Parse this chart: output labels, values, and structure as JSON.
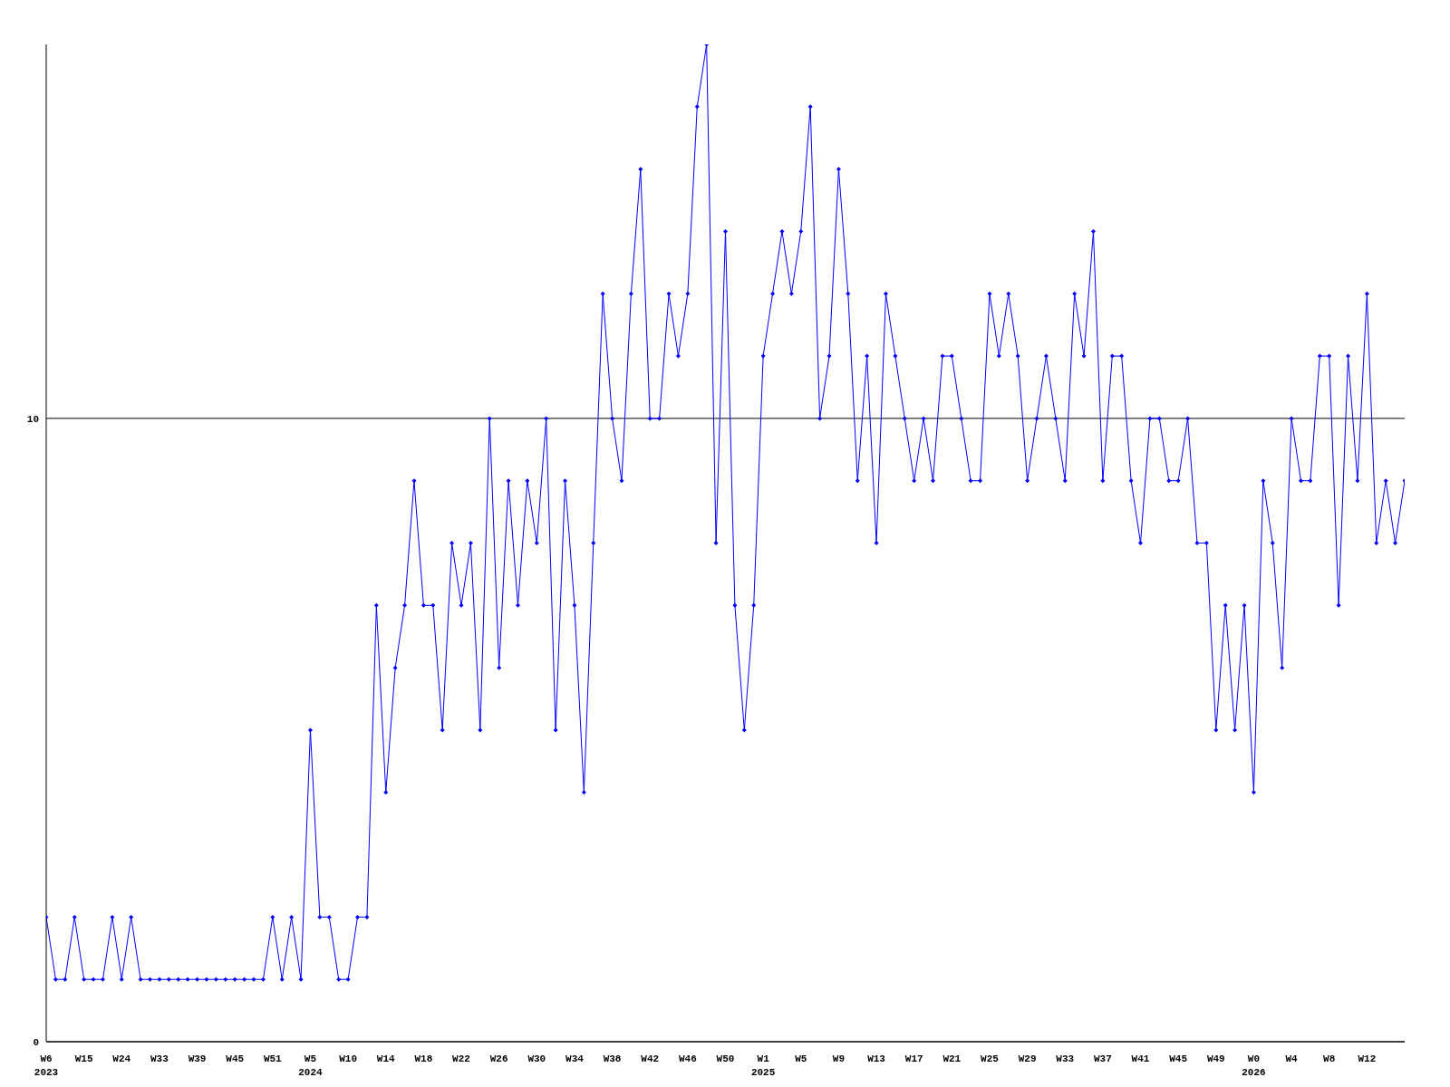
{
  "chart_data": {
    "type": "line",
    "categories": [
      "W6\n2023",
      null,
      null,
      null,
      "W15",
      null,
      null,
      null,
      "W24",
      null,
      null,
      null,
      "W33",
      null,
      null,
      null,
      "W39",
      null,
      null,
      null,
      "W45",
      null,
      null,
      null,
      "W51",
      null,
      null,
      null,
      "W5\n2024",
      null,
      null,
      null,
      "W10",
      null,
      null,
      null,
      "W14",
      null,
      null,
      null,
      "W18",
      null,
      null,
      null,
      "W22",
      null,
      null,
      null,
      "W26",
      null,
      null,
      null,
      "W30",
      null,
      null,
      null,
      "W34",
      null,
      null,
      null,
      "W38",
      null,
      null,
      null,
      "W42",
      null,
      null,
      null,
      "W46",
      null,
      null,
      null,
      "W50",
      null,
      null,
      null,
      "W1\n2025",
      null,
      null,
      null,
      "W5",
      null,
      null,
      null,
      "W9",
      null,
      null,
      null,
      "W13",
      null,
      null,
      null,
      "W17",
      null,
      null,
      null,
      "W21",
      null,
      null,
      null,
      "W25",
      null,
      null,
      null,
      "W29",
      null,
      null,
      null,
      "W33",
      null,
      null,
      null,
      "W37",
      null,
      null,
      null,
      "W41",
      null,
      null,
      null,
      "W45",
      null,
      null,
      null,
      "W49",
      null,
      null,
      null,
      "W0\n2026",
      null,
      null,
      null,
      "W4",
      null,
      null,
      null,
      "W8",
      null,
      null,
      null,
      "W12",
      null,
      null,
      null,
      null
    ],
    "series": [
      {
        "color": "#0000ff",
        "values": [
          2,
          1,
          1,
          2,
          1,
          1,
          1,
          2,
          1,
          2,
          1,
          1,
          1,
          1,
          1,
          1,
          1,
          1,
          1,
          1,
          1,
          1,
          1,
          1,
          2,
          1,
          2,
          1,
          5,
          2,
          2,
          1,
          1,
          2,
          2,
          7,
          4,
          6,
          7,
          9,
          7,
          7,
          5,
          8,
          7,
          8,
          5,
          10,
          6,
          9,
          7,
          9,
          8,
          10,
          5,
          9,
          7,
          4,
          8,
          12,
          10,
          9,
          12,
          14,
          10,
          10,
          12,
          11,
          12,
          15,
          16,
          8,
          13,
          7,
          5,
          7,
          11,
          12,
          13,
          12,
          13,
          15,
          10,
          11,
          14,
          12,
          9,
          11,
          8,
          12,
          11,
          10,
          9,
          10,
          9,
          11,
          11,
          10,
          9,
          9,
          12,
          11,
          12,
          11,
          9,
          10,
          11,
          10,
          9,
          12,
          11,
          13,
          9,
          11,
          11,
          9,
          8,
          10,
          10,
          9,
          9,
          10,
          8,
          8,
          5,
          7,
          5,
          7,
          4,
          9,
          8,
          6,
          10,
          9,
          9,
          11,
          11,
          7,
          11,
          9,
          12,
          8,
          9,
          8,
          9
        ]
      }
    ],
    "ylim": [
      0,
      16
    ],
    "yticks": [
      0,
      10
    ],
    "grid": "y",
    "marker": "diamond",
    "line_style": "solid"
  }
}
